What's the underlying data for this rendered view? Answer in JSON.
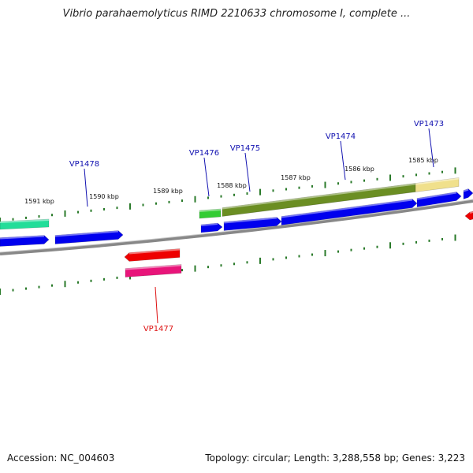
{
  "title": "Vibrio parahaemolyticus RIMD 2210633 chromosome I, complete ...",
  "footer": {
    "accession": "Accession: NC_004603",
    "summary": "Topology: circular; Length: 3,288,558 bp; Genes: 3,223"
  },
  "colors": {
    "blue": "#0000ee",
    "red": "#ee0000",
    "magenta": "#e8157a",
    "teal": "#22dd99",
    "green": "#33cc33",
    "olive": "#6b8e23",
    "khaki": "#f0e08c",
    "backbone": "#888888",
    "tick": "#2a7a2a",
    "label_blue": "#1010b0",
    "label_red": "#dd1010"
  },
  "scale_labels": [
    "1591 kbp",
    "1590 kbp",
    "1589 kbp",
    "1588 kbp",
    "1587 kbp",
    "1586 kbp",
    "1585 kbp"
  ],
  "gene_labels": [
    {
      "name": "VP1478",
      "color": "label_blue"
    },
    {
      "name": "VP1476",
      "color": "label_blue"
    },
    {
      "name": "VP1475",
      "color": "label_blue"
    },
    {
      "name": "VP1474",
      "color": "label_blue"
    },
    {
      "name": "VP1473",
      "color": "label_blue"
    },
    {
      "name": "VP1477",
      "color": "label_red"
    }
  ],
  "features": [
    {
      "track": "outer",
      "color": "teal",
      "type": "block"
    },
    {
      "track": "forward",
      "color": "blue",
      "type": "arrow-right"
    },
    {
      "track": "forward",
      "color": "blue",
      "type": "arrow-right"
    },
    {
      "track": "outer",
      "color": "green",
      "type": "block"
    },
    {
      "track": "forward",
      "color": "blue",
      "type": "arrow-right"
    },
    {
      "track": "outer",
      "color": "olive",
      "type": "block"
    },
    {
      "track": "forward",
      "color": "blue",
      "type": "arrow-right"
    },
    {
      "track": "forward",
      "color": "blue",
      "type": "arrow-right"
    },
    {
      "track": "outer",
      "color": "khaki",
      "type": "block"
    },
    {
      "track": "forward",
      "color": "blue",
      "type": "arrow-right"
    },
    {
      "track": "forward",
      "color": "blue",
      "type": "arrow-right"
    },
    {
      "track": "reverse",
      "color": "red",
      "type": "arrow-left"
    },
    {
      "track": "reverse",
      "color": "red",
      "type": "arrow-left"
    },
    {
      "track": "inner",
      "color": "magenta",
      "type": "block"
    }
  ]
}
